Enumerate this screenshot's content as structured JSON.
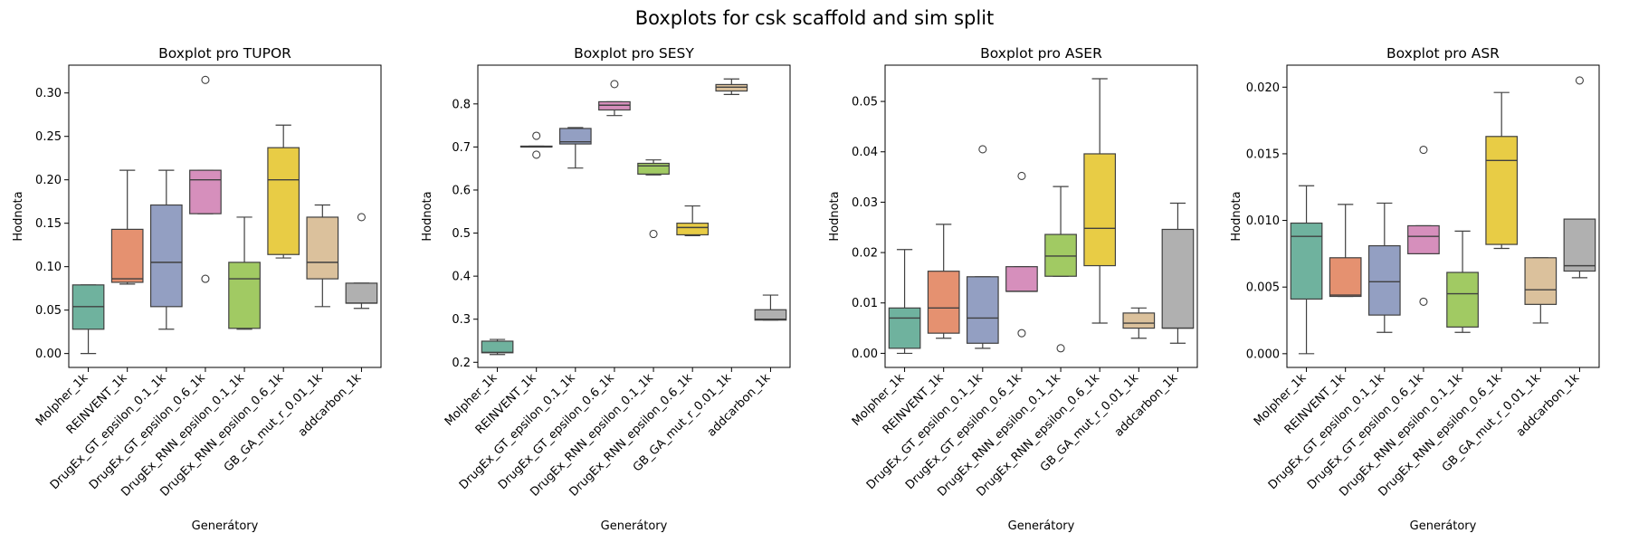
{
  "figure": {
    "title": "Boxplots for csk scaffold and sim split"
  },
  "chart_data": [
    {
      "type": "box",
      "title": "Boxplot pro TUPOR",
      "xlabel": "Generátory",
      "ylabel": "Hodnota",
      "categories": [
        "Molpher_1k",
        "REINVENT_1k",
        "DrugEx_GT_epsilon_0.1_1k",
        "DrugEx_GT_epsilon_0.6_1k",
        "DrugEx_RNN_epsilon_0.1_1k",
        "DrugEx_RNN_epsilon_0.6_1k",
        "GB_GA_mut_r_0.01_1k",
        "addcarbon_1k"
      ],
      "ylim": [
        -0.016,
        0.332
      ],
      "yticks": [
        0.0,
        0.05,
        0.1,
        0.15,
        0.2,
        0.25,
        0.3
      ],
      "ytick_labels": [
        "0.00",
        "0.05",
        "0.10",
        "0.15",
        "0.20",
        "0.25",
        "0.30"
      ],
      "boxes": [
        {
          "whislo": 0.0,
          "q1": 0.028,
          "med": 0.054,
          "q3": 0.079,
          "whishi": 0.079,
          "fliers": []
        },
        {
          "whislo": 0.08,
          "q1": 0.082,
          "med": 0.086,
          "q3": 0.143,
          "whishi": 0.211,
          "fliers": []
        },
        {
          "whislo": 0.028,
          "q1": 0.054,
          "med": 0.105,
          "q3": 0.171,
          "whishi": 0.211,
          "fliers": []
        },
        {
          "whislo": 0.161,
          "q1": 0.161,
          "med": 0.2,
          "q3": 0.211,
          "whishi": 0.211,
          "fliers": [
            0.315,
            0.086
          ]
        },
        {
          "whislo": 0.028,
          "q1": 0.029,
          "med": 0.086,
          "q3": 0.105,
          "whishi": 0.157,
          "fliers": []
        },
        {
          "whislo": 0.11,
          "q1": 0.114,
          "med": 0.2,
          "q3": 0.237,
          "whishi": 0.263,
          "fliers": []
        },
        {
          "whislo": 0.054,
          "q1": 0.086,
          "med": 0.105,
          "q3": 0.157,
          "whishi": 0.171,
          "fliers": []
        },
        {
          "whislo": 0.052,
          "q1": 0.058,
          "med": 0.058,
          "q3": 0.081,
          "whishi": 0.081,
          "fliers": [
            0.157
          ]
        }
      ]
    },
    {
      "type": "box",
      "title": "Boxplot pro SESY",
      "xlabel": "Generátory",
      "ylabel": "Hodnota",
      "categories": [
        "Molpher_1k",
        "REINVENT_1k",
        "DrugEx_GT_epsilon_0.1_1k",
        "DrugEx_GT_epsilon_0.6_1k",
        "DrugEx_RNN_epsilon_0.1_1k",
        "DrugEx_RNN_epsilon_0.6_1k",
        "GB_GA_mut_r_0.01_1k",
        "addcarbon_1k"
      ],
      "ylim": [
        0.188,
        0.89
      ],
      "yticks": [
        0.2,
        0.3,
        0.4,
        0.5,
        0.6,
        0.7,
        0.8
      ],
      "ytick_labels": [
        "0.2",
        "0.3",
        "0.4",
        "0.5",
        "0.6",
        "0.7",
        "0.8"
      ],
      "boxes": [
        {
          "whislo": 0.218,
          "q1": 0.222,
          "med": 0.223,
          "q3": 0.249,
          "whishi": 0.253,
          "fliers": []
        },
        {
          "whislo": 0.7,
          "q1": 0.7,
          "med": 0.7,
          "q3": 0.702,
          "whishi": 0.702,
          "fliers": [
            0.726,
            0.682
          ]
        },
        {
          "whislo": 0.651,
          "q1": 0.707,
          "med": 0.712,
          "q3": 0.743,
          "whishi": 0.745,
          "fliers": []
        },
        {
          "whislo": 0.773,
          "q1": 0.786,
          "med": 0.797,
          "q3": 0.805,
          "whishi": 0.805,
          "fliers": [
            0.846
          ]
        },
        {
          "whislo": 0.635,
          "q1": 0.637,
          "med": 0.656,
          "q3": 0.662,
          "whishi": 0.67,
          "fliers": [
            0.498
          ]
        },
        {
          "whislo": 0.494,
          "q1": 0.496,
          "med": 0.513,
          "q3": 0.523,
          "whishi": 0.563,
          "fliers": []
        },
        {
          "whislo": 0.822,
          "q1": 0.83,
          "med": 0.839,
          "q3": 0.845,
          "whishi": 0.858,
          "fliers": []
        },
        {
          "whislo": 0.298,
          "q1": 0.298,
          "med": 0.3,
          "q3": 0.322,
          "whishi": 0.356,
          "fliers": []
        }
      ]
    },
    {
      "type": "box",
      "title": "Boxplot pro ASER",
      "xlabel": "Generátory",
      "ylabel": "Hodnota",
      "categories": [
        "Molpher_1k",
        "REINVENT_1k",
        "DrugEx_GT_epsilon_0.1_1k",
        "DrugEx_GT_epsilon_0.6_1k",
        "DrugEx_RNN_epsilon_0.1_1k",
        "DrugEx_RNN_epsilon_0.6_1k",
        "GB_GA_mut_r_0.01_1k",
        "addcarbon_1k"
      ],
      "ylim": [
        -0.0028,
        0.0572
      ],
      "yticks": [
        0.0,
        0.01,
        0.02,
        0.03,
        0.04,
        0.05
      ],
      "ytick_labels": [
        "0.00",
        "0.01",
        "0.02",
        "0.03",
        "0.04",
        "0.05"
      ],
      "boxes": [
        {
          "whislo": 0.0,
          "q1": 0.001,
          "med": 0.007,
          "q3": 0.009,
          "whishi": 0.0206,
          "fliers": []
        },
        {
          "whislo": 0.003,
          "q1": 0.004,
          "med": 0.009,
          "q3": 0.0163,
          "whishi": 0.0256,
          "fliers": []
        },
        {
          "whislo": 0.001,
          "q1": 0.002,
          "med": 0.007,
          "q3": 0.0152,
          "whishi": 0.0152,
          "fliers": [
            0.0405
          ]
        },
        {
          "whislo": 0.0123,
          "q1": 0.0123,
          "med": 0.0123,
          "q3": 0.0172,
          "whishi": 0.0172,
          "fliers": [
            0.0352,
            0.004
          ]
        },
        {
          "whislo": 0.0153,
          "q1": 0.0153,
          "med": 0.0193,
          "q3": 0.0236,
          "whishi": 0.0331,
          "fliers": [
            0.001
          ]
        },
        {
          "whislo": 0.006,
          "q1": 0.0174,
          "med": 0.0248,
          "q3": 0.0396,
          "whishi": 0.0545,
          "fliers": []
        },
        {
          "whislo": 0.003,
          "q1": 0.005,
          "med": 0.006,
          "q3": 0.008,
          "whishi": 0.009,
          "fliers": []
        },
        {
          "whislo": 0.002,
          "q1": 0.005,
          "med": 0.005,
          "q3": 0.0246,
          "whishi": 0.0298,
          "fliers": []
        }
      ]
    },
    {
      "type": "box",
      "title": "Boxplot pro ASR",
      "xlabel": "Generátory",
      "ylabel": "Hodnota",
      "categories": [
        "Molpher_1k",
        "REINVENT_1k",
        "DrugEx_GT_epsilon_0.1_1k",
        "DrugEx_GT_epsilon_0.6_1k",
        "DrugEx_RNN_epsilon_0.1_1k",
        "DrugEx_RNN_epsilon_0.6_1k",
        "GB_GA_mut_r_0.01_1k",
        "addcarbon_1k"
      ],
      "ylim": [
        -0.00103,
        0.02165
      ],
      "yticks": [
        0.0,
        0.005,
        0.01,
        0.015,
        0.02
      ],
      "ytick_labels": [
        "0.000",
        "0.005",
        "0.010",
        "0.015",
        "0.020"
      ],
      "boxes": [
        {
          "whislo": 0.0,
          "q1": 0.0041,
          "med": 0.0088,
          "q3": 0.0098,
          "whishi": 0.0126,
          "fliers": []
        },
        {
          "whislo": 0.0043,
          "q1": 0.0043,
          "med": 0.0044,
          "q3": 0.0072,
          "whishi": 0.0112,
          "fliers": []
        },
        {
          "whislo": 0.0016,
          "q1": 0.0029,
          "med": 0.0054,
          "q3": 0.0081,
          "whishi": 0.0113,
          "fliers": []
        },
        {
          "whislo": 0.0075,
          "q1": 0.0075,
          "med": 0.0088,
          "q3": 0.0096,
          "whishi": 0.0096,
          "fliers": [
            0.0153,
            0.0039
          ]
        },
        {
          "whislo": 0.0016,
          "q1": 0.002,
          "med": 0.0045,
          "q3": 0.0061,
          "whishi": 0.0092,
          "fliers": []
        },
        {
          "whislo": 0.0079,
          "q1": 0.0082,
          "med": 0.0145,
          "q3": 0.0163,
          "whishi": 0.0196,
          "fliers": []
        },
        {
          "whislo": 0.0023,
          "q1": 0.0037,
          "med": 0.0048,
          "q3": 0.0072,
          "whishi": 0.0072,
          "fliers": []
        },
        {
          "whislo": 0.0057,
          "q1": 0.0062,
          "med": 0.0066,
          "q3": 0.0101,
          "whishi": 0.0101,
          "fliers": [
            0.0205
          ]
        }
      ]
    }
  ],
  "palette": [
    "#66c2a5",
    "#fc8d62",
    "#8da0cb",
    "#e78ac3",
    "#a6d854",
    "#ffd92f",
    "#e5c494",
    "#b3b3b3"
  ],
  "box_colors": [
    "#6fb29e",
    "#e59170",
    "#939fc2",
    "#d68fbc",
    "#a1ca63",
    "#e8cc45",
    "#dbc19c",
    "#b0b0b0"
  ]
}
